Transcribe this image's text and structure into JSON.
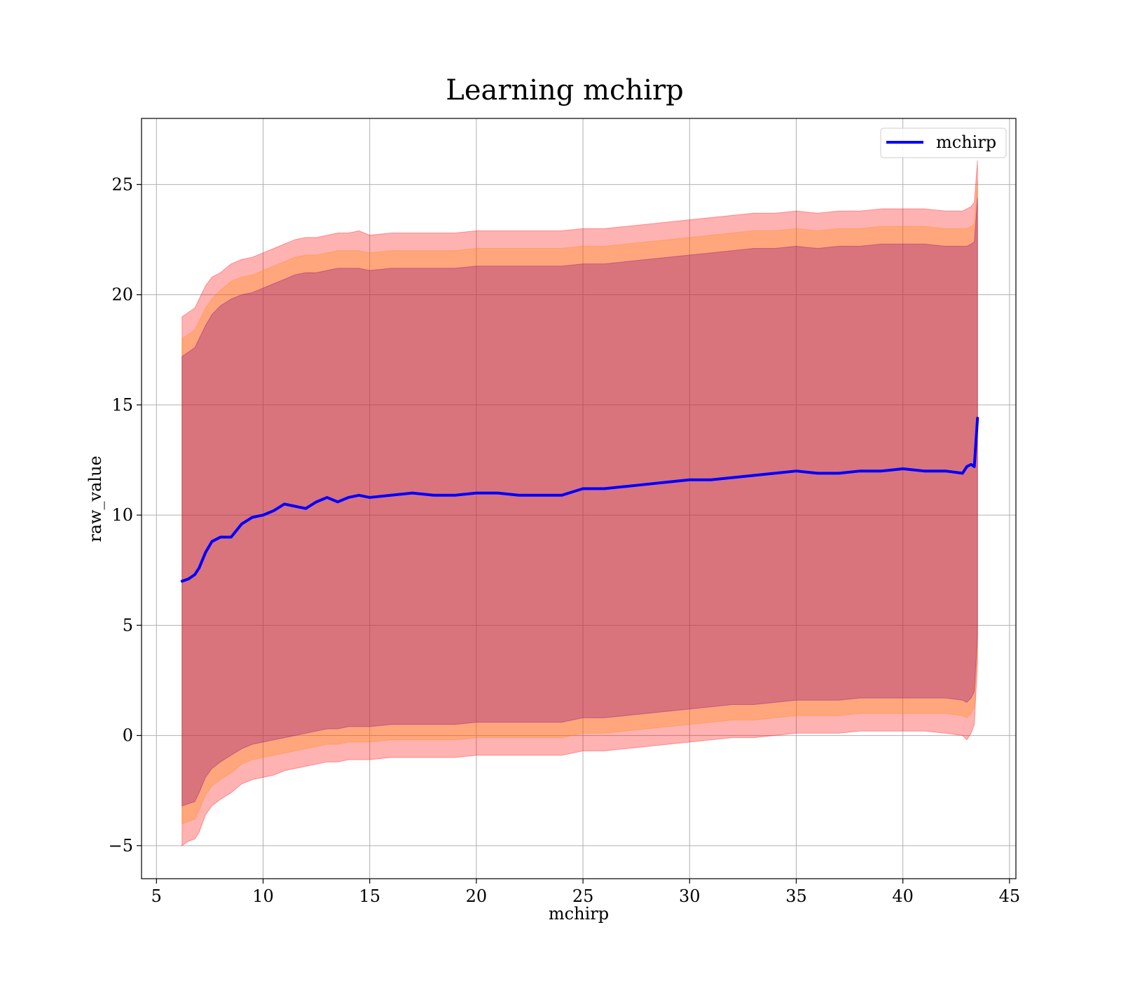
{
  "chart_data": {
    "type": "area",
    "title": "Learning mchirp",
    "xlabel": "mchirp",
    "ylabel": "raw_value",
    "xlim": [
      4.3,
      45.3
    ],
    "ylim": [
      -6.5,
      28.0
    ],
    "xticks": [
      5,
      10,
      15,
      20,
      25,
      30,
      35,
      40,
      45
    ],
    "yticks": [
      -5,
      0,
      5,
      10,
      15,
      20,
      25
    ],
    "xtick_labels": [
      "5",
      "10",
      "15",
      "20",
      "25",
      "30",
      "35",
      "40",
      "45"
    ],
    "ytick_labels": [
      "−5",
      "0",
      "5",
      "10",
      "15",
      "20",
      "25"
    ],
    "grid": true,
    "legend": {
      "position": "top-right",
      "entries": [
        "mchirp"
      ]
    },
    "colors": {
      "line": "#0000ff",
      "band_outer": "#ff0000",
      "band_middle": "#ff8c00",
      "band_inner": "#800080",
      "grid": "#b0b0b0"
    },
    "series": [
      {
        "name": "mchirp",
        "x": [
          6.2,
          6.5,
          6.8,
          7.0,
          7.3,
          7.6,
          8.0,
          8.5,
          9.0,
          9.5,
          10.0,
          10.5,
          11.0,
          11.5,
          12.0,
          12.5,
          13.0,
          13.5,
          14.0,
          14.5,
          15.0,
          16.0,
          17.0,
          18.0,
          19.0,
          20.0,
          21.0,
          22.0,
          23.0,
          24.0,
          25.0,
          26.0,
          27.0,
          28.0,
          29.0,
          30.0,
          31.0,
          32.0,
          33.0,
          34.0,
          35.0,
          36.0,
          37.0,
          38.0,
          39.0,
          40.0,
          41.0,
          42.0,
          42.8,
          43.0,
          43.2,
          43.35,
          43.5
        ],
        "values": [
          7.0,
          7.1,
          7.3,
          7.6,
          8.3,
          8.8,
          9.0,
          9.0,
          9.6,
          9.9,
          10.0,
          10.2,
          10.5,
          10.4,
          10.3,
          10.6,
          10.8,
          10.6,
          10.8,
          10.9,
          10.8,
          10.9,
          11.0,
          10.9,
          10.9,
          11.0,
          11.0,
          10.9,
          10.9,
          10.9,
          11.2,
          11.2,
          11.3,
          11.4,
          11.5,
          11.6,
          11.6,
          11.7,
          11.8,
          11.9,
          12.0,
          11.9,
          11.9,
          12.0,
          12.0,
          12.1,
          12.0,
          12.0,
          11.9,
          12.2,
          12.3,
          12.2,
          14.4
        ],
        "bands": [
          {
            "name": "outer",
            "upper": [
              19.0,
              19.2,
              19.4,
              19.8,
              20.4,
              20.8,
              21.0,
              21.4,
              21.6,
              21.7,
              21.9,
              22.1,
              22.3,
              22.5,
              22.6,
              22.6,
              22.7,
              22.8,
              22.8,
              22.9,
              22.7,
              22.8,
              22.8,
              22.8,
              22.8,
              22.9,
              22.9,
              22.9,
              22.9,
              22.9,
              23.0,
              23.0,
              23.1,
              23.2,
              23.3,
              23.4,
              23.5,
              23.6,
              23.7,
              23.7,
              23.8,
              23.7,
              23.8,
              23.8,
              23.9,
              23.9,
              23.9,
              23.8,
              23.8,
              23.9,
              24.0,
              24.2,
              26.1
            ],
            "lower": [
              -5.0,
              -4.8,
              -4.7,
              -4.4,
              -3.6,
              -3.2,
              -2.9,
              -2.6,
              -2.2,
              -2.0,
              -1.9,
              -1.8,
              -1.6,
              -1.5,
              -1.4,
              -1.3,
              -1.2,
              -1.2,
              -1.1,
              -1.1,
              -1.1,
              -1.0,
              -1.0,
              -1.0,
              -1.0,
              -0.9,
              -0.9,
              -0.9,
              -0.9,
              -0.9,
              -0.7,
              -0.7,
              -0.6,
              -0.5,
              -0.4,
              -0.3,
              -0.2,
              -0.1,
              -0.1,
              0.0,
              0.1,
              0.1,
              0.1,
              0.2,
              0.2,
              0.2,
              0.2,
              0.1,
              0.0,
              -0.2,
              0.1,
              0.5,
              3.3
            ]
          },
          {
            "name": "middle",
            "upper": [
              18.0,
              18.2,
              18.4,
              18.8,
              19.4,
              19.8,
              20.2,
              20.6,
              20.8,
              20.9,
              21.1,
              21.3,
              21.5,
              21.7,
              21.8,
              21.8,
              21.9,
              22.0,
              22.0,
              22.0,
              21.9,
              22.0,
              22.0,
              22.0,
              22.0,
              22.1,
              22.1,
              22.1,
              22.1,
              22.1,
              22.2,
              22.2,
              22.3,
              22.4,
              22.5,
              22.6,
              22.7,
              22.8,
              22.9,
              22.9,
              23.0,
              22.9,
              23.0,
              23.0,
              23.1,
              23.1,
              23.1,
              23.0,
              23.0,
              23.0,
              23.1,
              23.2,
              25.2
            ],
            "lower": [
              -4.0,
              -3.9,
              -3.8,
              -3.4,
              -2.7,
              -2.3,
              -2.0,
              -1.7,
              -1.3,
              -1.1,
              -1.0,
              -0.9,
              -0.8,
              -0.7,
              -0.6,
              -0.5,
              -0.4,
              -0.4,
              -0.3,
              -0.3,
              -0.3,
              -0.2,
              -0.2,
              -0.2,
              -0.2,
              -0.1,
              -0.1,
              -0.1,
              -0.1,
              -0.1,
              0.1,
              0.1,
              0.2,
              0.3,
              0.4,
              0.5,
              0.6,
              0.7,
              0.7,
              0.8,
              0.9,
              0.9,
              0.9,
              1.0,
              1.0,
              1.0,
              1.0,
              1.0,
              0.9,
              0.8,
              1.0,
              1.3,
              3.9
            ]
          },
          {
            "name": "inner",
            "upper": [
              17.2,
              17.4,
              17.6,
              18.0,
              18.6,
              19.1,
              19.5,
              19.8,
              20.0,
              20.1,
              20.3,
              20.5,
              20.7,
              20.9,
              21.0,
              21.0,
              21.1,
              21.2,
              21.2,
              21.2,
              21.1,
              21.2,
              21.2,
              21.2,
              21.2,
              21.3,
              21.3,
              21.3,
              21.3,
              21.3,
              21.4,
              21.4,
              21.5,
              21.6,
              21.7,
              21.8,
              21.9,
              22.0,
              22.1,
              22.1,
              22.2,
              22.1,
              22.2,
              22.2,
              22.3,
              22.3,
              22.3,
              22.2,
              22.2,
              22.2,
              22.3,
              22.4,
              24.4
            ],
            "lower": [
              -3.2,
              -3.1,
              -3.0,
              -2.6,
              -1.9,
              -1.5,
              -1.2,
              -0.9,
              -0.6,
              -0.4,
              -0.3,
              -0.2,
              -0.1,
              0.0,
              0.1,
              0.2,
              0.3,
              0.3,
              0.4,
              0.4,
              0.4,
              0.5,
              0.5,
              0.5,
              0.5,
              0.6,
              0.6,
              0.6,
              0.6,
              0.6,
              0.8,
              0.8,
              0.9,
              1.0,
              1.1,
              1.2,
              1.3,
              1.4,
              1.4,
              1.5,
              1.6,
              1.6,
              1.6,
              1.7,
              1.7,
              1.7,
              1.7,
              1.7,
              1.6,
              1.5,
              1.7,
              2.0,
              4.5
            ]
          }
        ]
      }
    ]
  }
}
